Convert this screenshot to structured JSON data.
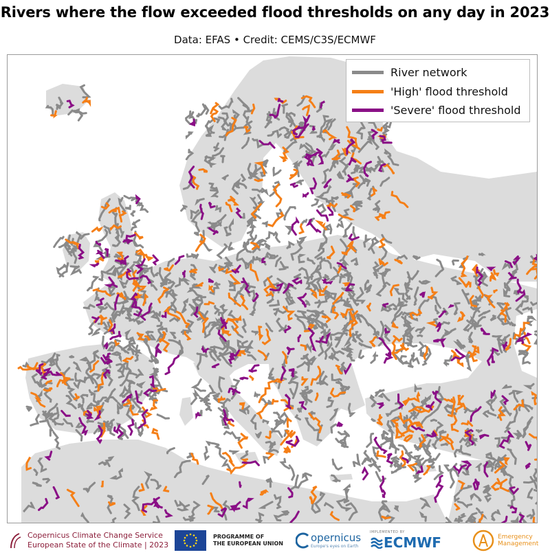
{
  "title": "Rivers where the flow exceeded flood thresholds on any day in 2023",
  "subtitle": "Data: EFAS • Credit: CEMS/C3S/ECMWF",
  "legend": {
    "items": [
      {
        "label": "River network",
        "color": "#8a8a8a"
      },
      {
        "label": "'High' flood threshold",
        "color": "#f57f17"
      },
      {
        "label": "'Severe' flood threshold",
        "color": "#8a0f86"
      }
    ]
  },
  "colors": {
    "land": "#dcdcdc",
    "sea": "#ffffff",
    "river": "#8a8a8a",
    "high": "#f57f17",
    "severe": "#8a0f86"
  },
  "footer": {
    "c3s_line1": "Copernicus Climate Change Service",
    "c3s_line2": "European State of the Climate | 2023",
    "eu_line1": "PROGRAMME OF",
    "eu_line2": "THE EUROPEAN UNION",
    "copernicus": "opernicus",
    "copernicus_sub": "Europe's eyes on Earth",
    "ecmwf_sub": "IMPLEMENTED BY",
    "ecmwf": "ECMWF",
    "em_line1": "Emergency",
    "em_line2": "Management"
  }
}
